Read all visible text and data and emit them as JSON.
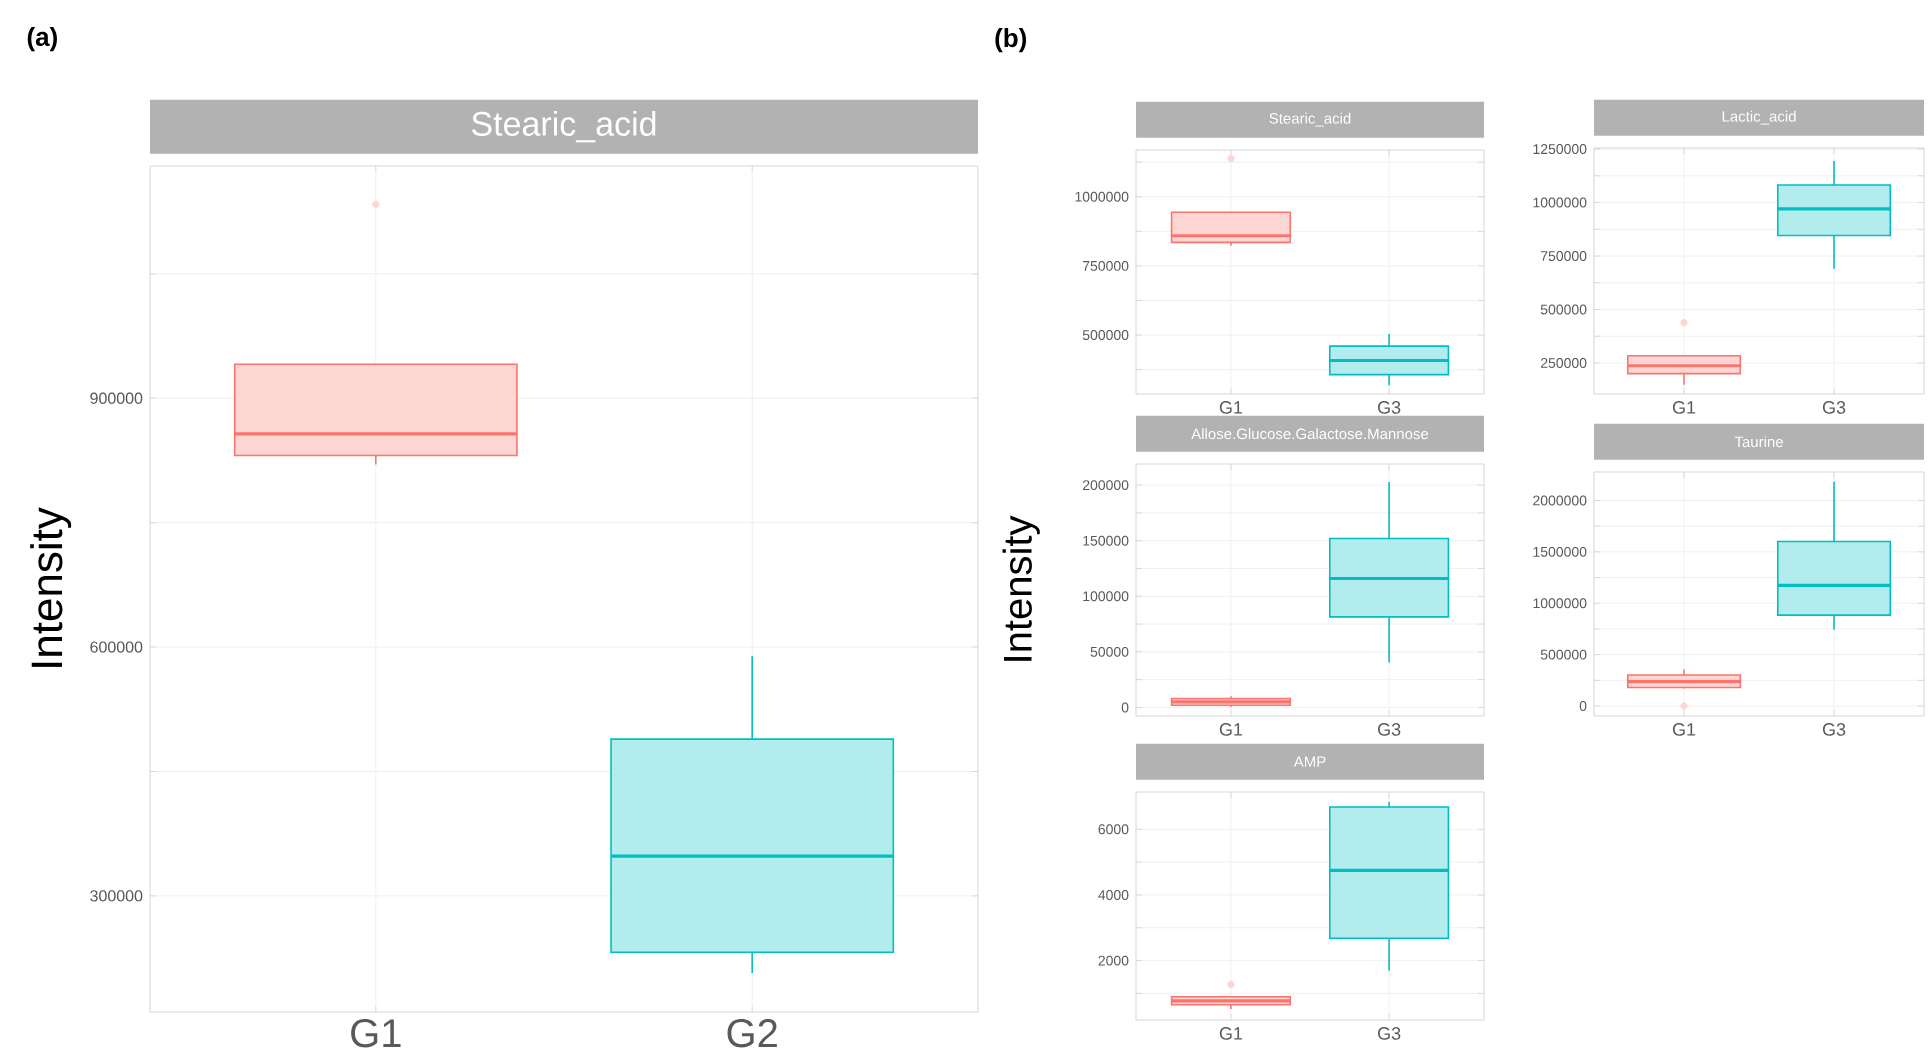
{
  "chart_data": [
    {
      "type": "box",
      "title": "Stearic_acid",
      "ylabel": "Intensity",
      "annotations": [
        "(a)"
      ],
      "categories": [
        "G1",
        "G2"
      ],
      "colors": [
        "#F8766D",
        "#00BFC4"
      ],
      "ylim": [
        160000,
        1180000
      ],
      "yticks": [
        300000,
        {
          "value": 450000,
          "label": null
        },
        600000,
        {
          "value": 750000,
          "label": null
        },
        900000,
        {
          "value": 1050000,
          "label": null
        }
      ],
      "grid": true,
      "boxes": [
        {
          "low": 820000,
          "q1": 831000,
          "median": 857000,
          "q3": 941000,
          "high": 941000,
          "outliers": [
            1134000
          ]
        },
        {
          "low": 207000,
          "q1": 232000,
          "median": 348000,
          "q3": 489000,
          "high": 589000
        }
      ]
    },
    {
      "type": "box",
      "title": "Stearic_acid",
      "annotations": [
        "(b)"
      ],
      "categories": [
        "G1",
        "G3"
      ],
      "colors": [
        "#F8766D",
        "#00BFC4"
      ],
      "ylim": [
        287000,
        1169000
      ],
      "yticks": [
        {
          "value": 375000,
          "label": null
        },
        500000,
        {
          "value": 625000,
          "label": null
        },
        750000,
        {
          "value": 875000,
          "label": null
        },
        1000000,
        {
          "value": 1125000,
          "label": null
        }
      ],
      "grid": true,
      "boxes": [
        {
          "low": 823000,
          "q1": 835000,
          "median": 859000,
          "q3": 944000,
          "high": 944000,
          "outliers": [
            1138000
          ]
        },
        {
          "low": 319000,
          "q1": 357000,
          "median": 408000,
          "q3": 460000,
          "high": 504000
        }
      ]
    },
    {
      "type": "box",
      "title": "Lactic_acid",
      "categories": [
        "G1",
        "G3"
      ],
      "colors": [
        "#F8766D",
        "#00BFC4"
      ],
      "ylim": [
        105000,
        1255000
      ],
      "yticks": [
        250000,
        {
          "value": 375000,
          "label": null
        },
        500000,
        {
          "value": 625000,
          "label": null
        },
        750000,
        {
          "value": 875000,
          "label": null
        },
        1000000,
        {
          "value": 1125000,
          "label": null
        },
        1250000
      ],
      "grid": true,
      "boxes": [
        {
          "low": 148000,
          "q1": 200000,
          "median": 237000,
          "q3": 284000,
          "high": 284000,
          "outliers": [
            438000
          ]
        },
        {
          "low": 690000,
          "q1": 846000,
          "median": 970000,
          "q3": 1082000,
          "high": 1194000
        }
      ]
    },
    {
      "type": "box",
      "title": "Allose.Glucose.Galactose.Mannose",
      "ylabel": "Intensity",
      "categories": [
        "G1",
        "G3"
      ],
      "colors": [
        "#F8766D",
        "#00BFC4"
      ],
      "ylim": [
        -7700,
        219000
      ],
      "yticks": [
        0,
        {
          "value": 25000,
          "label": null
        },
        50000,
        {
          "value": 75000,
          "label": null
        },
        100000,
        {
          "value": 125000,
          "label": null
        },
        150000,
        {
          "value": 175000,
          "label": null
        },
        200000
      ],
      "grid": true,
      "boxes": [
        {
          "low": 500,
          "q1": 2000,
          "median": 5000,
          "q3": 8000,
          "high": 10000
        },
        {
          "low": 40500,
          "q1": 81500,
          "median": 116000,
          "q3": 152000,
          "high": 202700
        }
      ]
    },
    {
      "type": "box",
      "title": "Taurine",
      "categories": [
        "G1",
        "G3"
      ],
      "colors": [
        "#F8766D",
        "#00BFC4"
      ],
      "ylim": [
        -97000,
        2277000
      ],
      "yticks": [
        0,
        {
          "value": 250000,
          "label": null
        },
        500000,
        {
          "value": 750000,
          "label": null
        },
        1000000,
        {
          "value": 1250000,
          "label": null
        },
        1500000,
        {
          "value": 1750000,
          "label": null
        },
        2000000
      ],
      "grid": true,
      "boxes": [
        {
          "low": 170000,
          "q1": 180000,
          "median": 238000,
          "q3": 302000,
          "high": 355000,
          "outliers": [
            0
          ]
        },
        {
          "low": 742000,
          "q1": 884000,
          "median": 1174000,
          "q3": 1601000,
          "high": 2182000
        }
      ]
    },
    {
      "type": "box",
      "title": "AMP",
      "categories": [
        "G1",
        "G3"
      ],
      "colors": [
        "#F8766D",
        "#00BFC4"
      ],
      "ylim": [
        190,
        7137
      ],
      "yticks": [
        {
          "value": 1000,
          "label": null
        },
        2000,
        {
          "value": 3000,
          "label": null
        },
        4000,
        {
          "value": 5000,
          "label": null
        },
        6000
      ],
      "grid": true,
      "boxes": [
        {
          "low": 525,
          "q1": 655,
          "median": 770,
          "q3": 900,
          "high": 900,
          "outliers": [
            1272
          ]
        },
        {
          "low": 1690,
          "q1": 2680,
          "median": 4750,
          "q3": 6680,
          "high": 6840
        }
      ]
    }
  ]
}
